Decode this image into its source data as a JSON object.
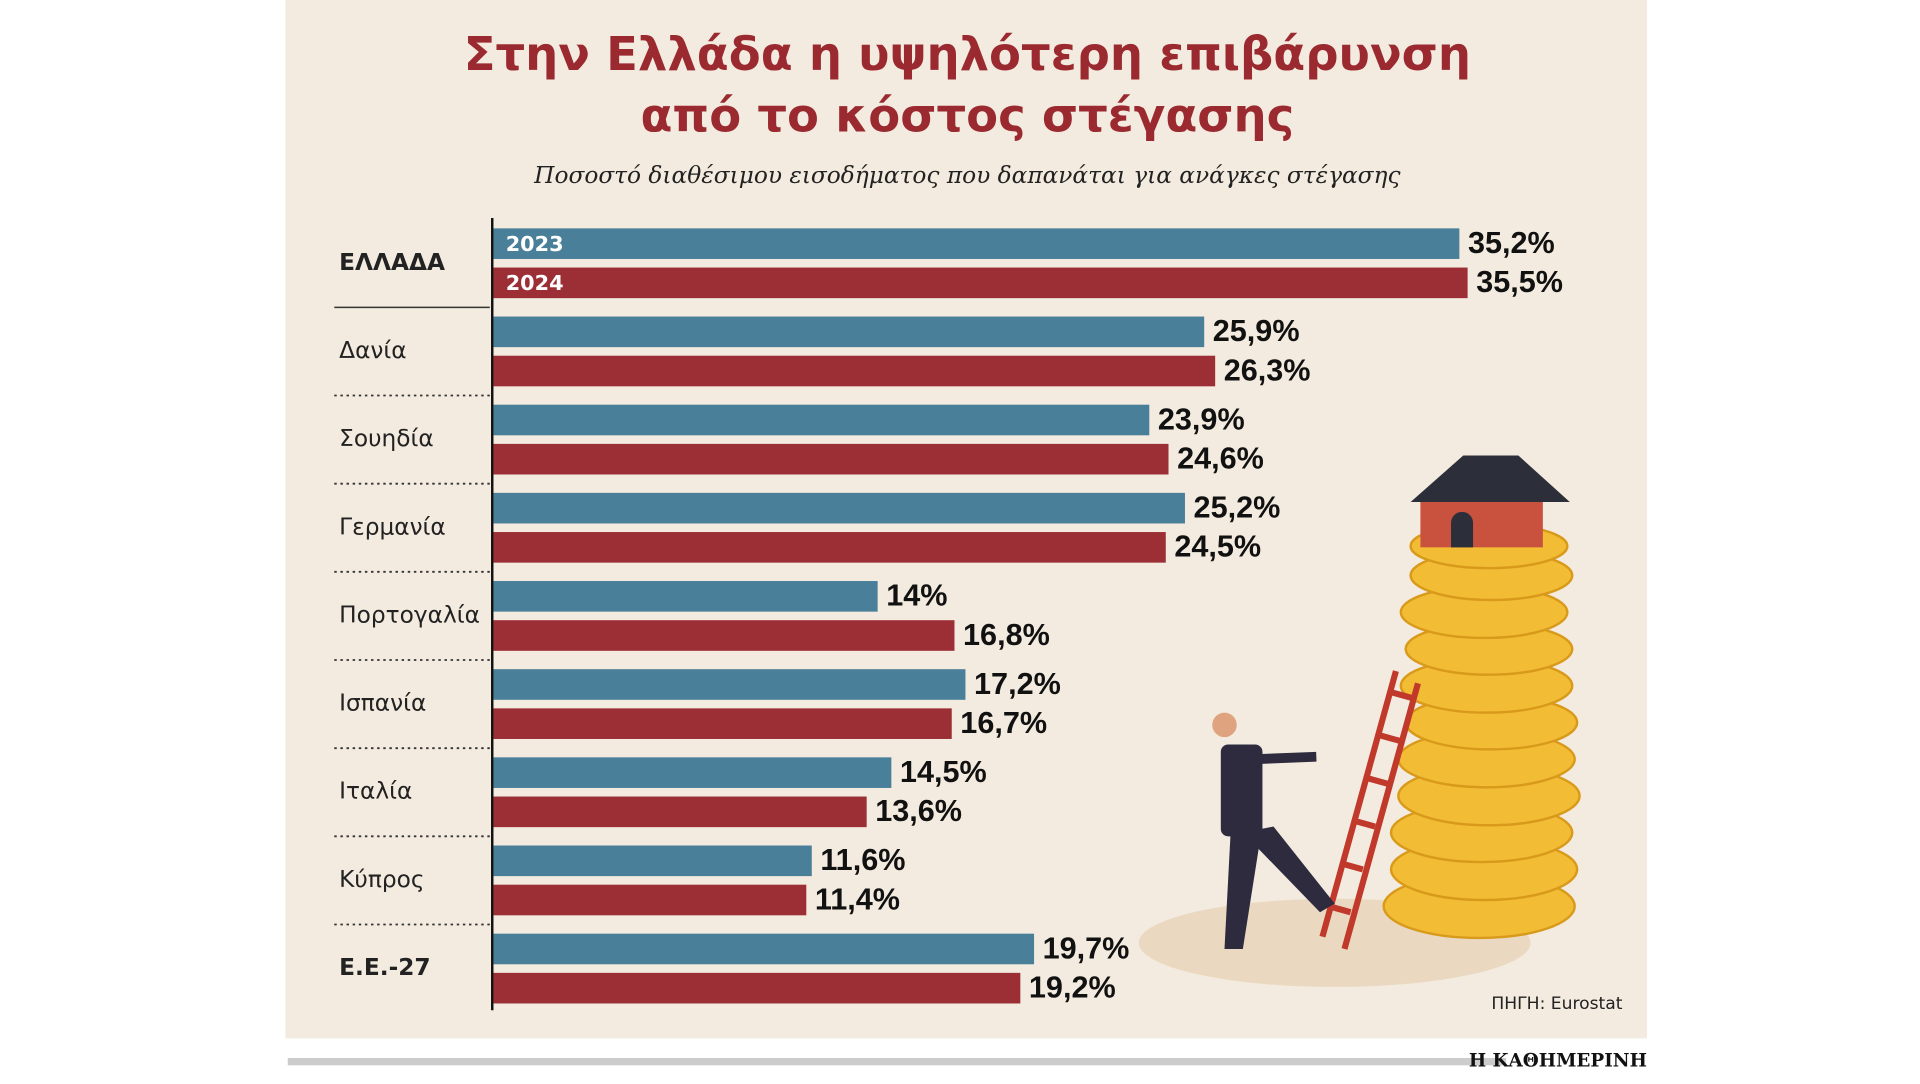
{
  "chart_data": {
    "type": "hbar",
    "title": [
      "Στην Ελλάδα η υψηλότερη επιβάρυνση",
      "από το κόστος στέγασης"
    ],
    "subtitle": "Ποσοστό διαθέσιμου εισοδήματος που δαπανάται για ανάγκες στέγασης",
    "categories": [
      "ΕΛΛΑΔΑ",
      "Δανία",
      "Σουηδία",
      "Γερμανία",
      "Πορτογαλία",
      "Ισπανία",
      "Ιταλία",
      "Κύπρος",
      "Ε.Ε.-27"
    ],
    "series": [
      {
        "name": "2023",
        "color": "#4a7f99",
        "values": [
          35.2,
          25.9,
          23.9,
          25.2,
          14,
          17.2,
          14.5,
          11.6,
          19.7
        ],
        "value_labels": [
          "35,2%",
          "25,9%",
          "23,9%",
          "25,2%",
          "14%",
          "17,2%",
          "14,5%",
          "11,6%",
          "19,7%"
        ]
      },
      {
        "name": "2024",
        "color": "#9b2f35",
        "values": [
          35.5,
          26.3,
          24.6,
          24.5,
          16.8,
          16.7,
          13.6,
          11.4,
          19.2
        ],
        "value_labels": [
          "35,5%",
          "26,3%",
          "24,6%",
          "24,5%",
          "16,8%",
          "16,7%",
          "13,6%",
          "11,4%",
          "19,2%"
        ]
      }
    ],
    "source": "ΠΗΓΗ: Eurostat",
    "publisher": "Η ΚΑΘΗΜΕΡΙΝΗ"
  }
}
